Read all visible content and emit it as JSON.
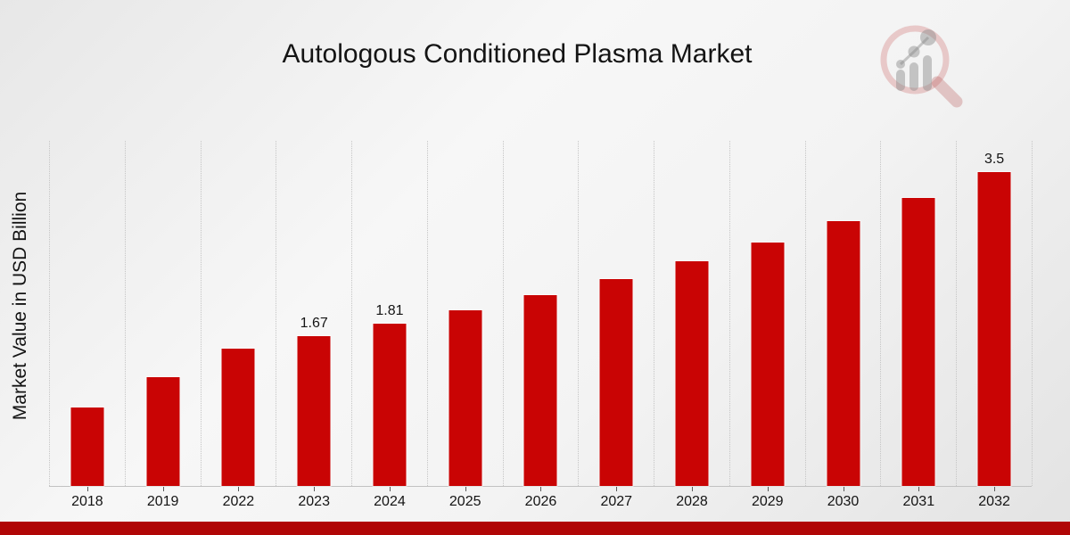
{
  "page": {
    "footer_accent_color": "#b00606",
    "background_base_color": "#ededed"
  },
  "logo": {
    "name": "magnifier-bar-chart-watermark",
    "ring_color": "rgba(200,88,88,0.28)",
    "handle_color": "rgba(188,96,96,0.32)",
    "glyph_color": "rgba(138,138,138,0.45)"
  },
  "chart_data": {
    "type": "bar",
    "title": "Autologous Conditioned Plasma Market",
    "xlabel": "",
    "ylabel": "Market Value in USD Billion",
    "categories": [
      "2018",
      "2019",
      "2022",
      "2023",
      "2024",
      "2025",
      "2026",
      "2027",
      "2028",
      "2029",
      "2030",
      "2031",
      "2032"
    ],
    "values": [
      0.88,
      1.21,
      1.53,
      1.67,
      1.81,
      1.96,
      2.13,
      2.31,
      2.51,
      2.72,
      2.96,
      3.21,
      3.5
    ],
    "data_labels": [
      "",
      "",
      "",
      "1.67",
      "1.81",
      "",
      "",
      "",
      "",
      "",
      "",
      "",
      "3.5"
    ],
    "bar_color": "#c90404",
    "ylim": [
      0,
      3.85
    ],
    "grid": "vertical-dotted",
    "legend": "none",
    "y_axis_ticks_visible": false
  }
}
